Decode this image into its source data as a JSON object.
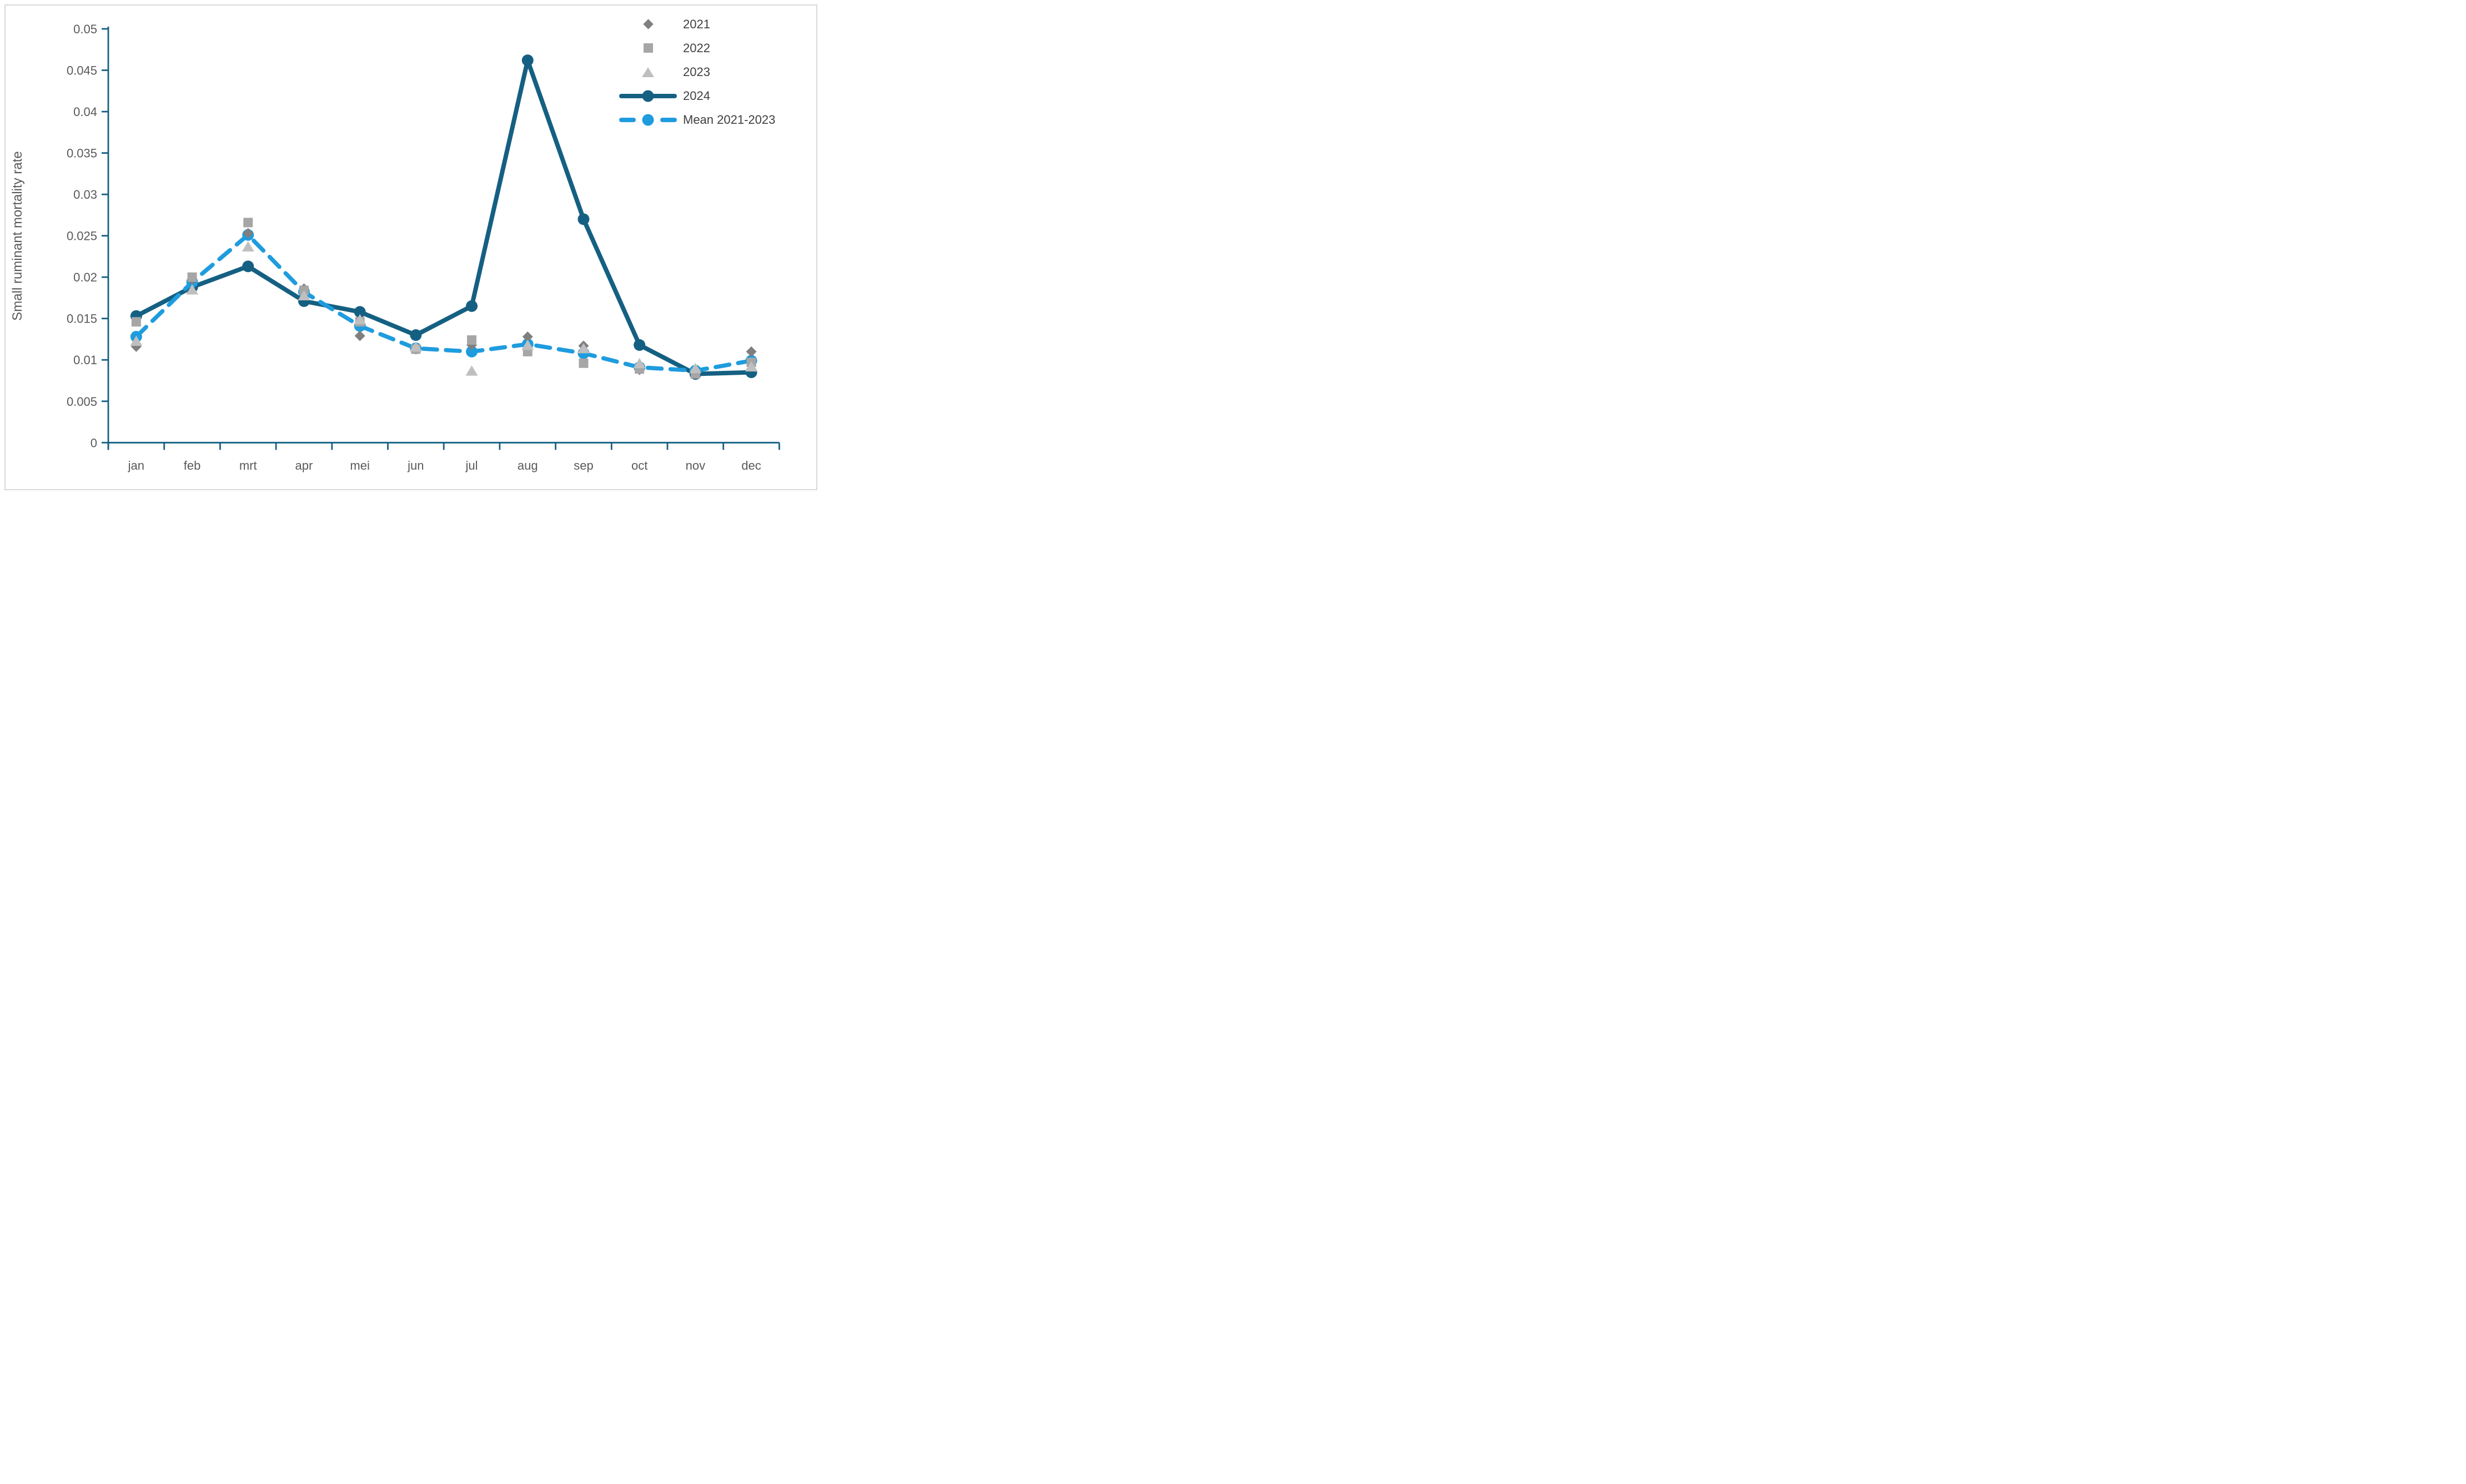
{
  "chart_data": {
    "type": "line",
    "title": "",
    "xlabel": "",
    "ylabel": "Small ruminant mortality rate",
    "categories": [
      "jan",
      "feb",
      "mrt",
      "apr",
      "mei",
      "jun",
      "jul",
      "aug",
      "sep",
      "oct",
      "nov",
      "dec"
    ],
    "y_ticks": [
      "0",
      "0.005",
      "0.01",
      "0.015",
      "0.02",
      "0.025",
      "0.03",
      "0.035",
      "0.04",
      "0.045",
      "0.05"
    ],
    "ylim": [
      0,
      0.05
    ],
    "grid": "off",
    "legend_position": "top-right",
    "axis_color": "#156082",
    "label_color": "#595959",
    "legend_text_color": "#404040",
    "border_color": "#D9D9D9",
    "series": [
      {
        "name": "2021",
        "type": "scatter",
        "marker": "diamond",
        "color": "#7F7F7F",
        "values": [
          0.0116,
          0.0197,
          0.0253,
          0.0186,
          0.0129,
          0.0114,
          0.0118,
          0.0128,
          0.0117,
          0.0088,
          0.0087,
          0.011
        ]
      },
      {
        "name": "2022",
        "type": "scatter",
        "marker": "square",
        "color": "#A6A6A6",
        "values": [
          0.0146,
          0.02,
          0.0266,
          0.0184,
          0.0146,
          0.0113,
          0.0124,
          0.011,
          0.0096,
          0.0089,
          0.0083,
          0.0097
        ]
      },
      {
        "name": "2023",
        "type": "scatter",
        "marker": "triangle",
        "color": "#BFBFBF",
        "values": [
          0.0122,
          0.0184,
          0.0236,
          0.0177,
          0.0148,
          0.0115,
          0.0086,
          0.0117,
          0.0113,
          0.0095,
          0.0089,
          0.0091
        ]
      },
      {
        "name": "2024",
        "type": "line",
        "marker": "circle",
        "color": "#156082",
        "values": [
          0.0153,
          0.0188,
          0.0213,
          0.0171,
          0.0158,
          0.013,
          0.0165,
          0.0462,
          0.027,
          0.0118,
          0.0083,
          0.0085
        ]
      },
      {
        "name": "Mean 2021-2023",
        "type": "dashed-line",
        "marker": "circle",
        "color": "#1E9CDE",
        "values": [
          0.0128,
          0.0194,
          0.0251,
          0.0182,
          0.0141,
          0.0114,
          0.011,
          0.0119,
          0.0108,
          0.0091,
          0.0087,
          0.0099
        ]
      }
    ]
  }
}
